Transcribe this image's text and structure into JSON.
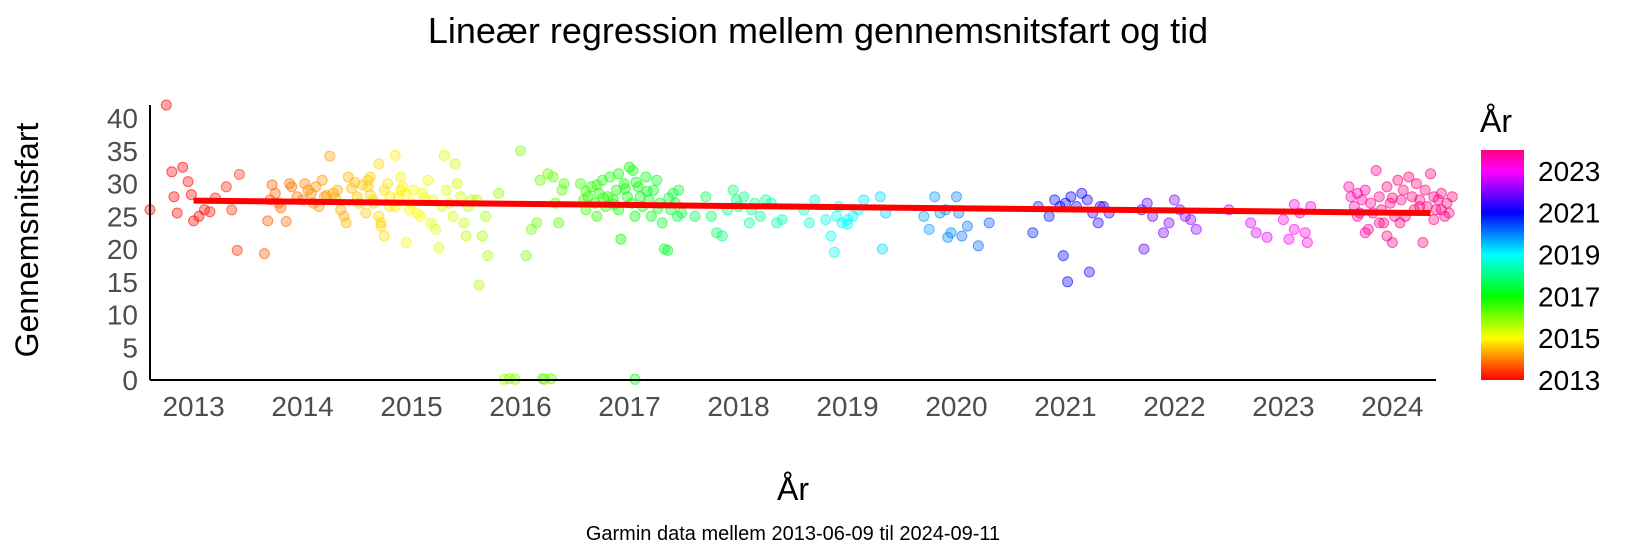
{
  "chart_data": {
    "type": "scatter",
    "title": "Lineær regression mellem gennemsnitsfart og tid",
    "xlabel": "År",
    "ylabel": "Gennemsnitsfart",
    "caption": "Garmin data mellem 2013-06-09 til 2024-09-11",
    "xlim": [
      2012.6,
      2024.4
    ],
    "ylim": [
      0,
      42
    ],
    "x_ticks": [
      "2013",
      "2014",
      "2015",
      "2016",
      "2017",
      "2018",
      "2019",
      "2020",
      "2021",
      "2022",
      "2023",
      "2024"
    ],
    "y_ticks": [
      "0",
      "5",
      "10",
      "15",
      "20",
      "25",
      "30",
      "35",
      "40"
    ],
    "grid": false,
    "legend": {
      "title": "År",
      "placement": "right",
      "type": "colorbar",
      "ticks": [
        "2013",
        "2015",
        "2017",
        "2019",
        "2021",
        "2023"
      ],
      "range": [
        2013,
        2024
      ],
      "gradient": [
        "#ff0000",
        "#ff8000",
        "#ffff00",
        "#80ff00",
        "#00ff00",
        "#00ff80",
        "#00ffff",
        "#0080ff",
        "#0000ff",
        "#8000ff",
        "#ff00ff",
        "#ff0080"
      ]
    },
    "point_opacity": 0.35,
    "regression_line": {
      "color": "#ff0000",
      "x": [
        2013.0,
        2024.35
      ],
      "y": [
        27.4,
        25.5
      ]
    },
    "points": [
      [
        2012.6,
        26.0
      ],
      [
        2012.75,
        42.0
      ],
      [
        2012.8,
        31.8
      ],
      [
        2012.82,
        28.0
      ],
      [
        2012.85,
        25.5
      ],
      [
        2012.9,
        32.5
      ],
      [
        2012.95,
        30.3
      ],
      [
        2012.98,
        28.3
      ],
      [
        2013.0,
        24.3
      ],
      [
        2013.05,
        25.0
      ],
      [
        2013.1,
        26.0
      ],
      [
        2013.15,
        25.7
      ],
      [
        2013.2,
        27.8
      ],
      [
        2013.3,
        29.5
      ],
      [
        2013.35,
        26.0
      ],
      [
        2013.4,
        19.8
      ],
      [
        2013.42,
        31.4
      ],
      [
        2013.65,
        19.3
      ],
      [
        2013.68,
        24.3
      ],
      [
        2013.7,
        27.5
      ],
      [
        2013.72,
        29.8
      ],
      [
        2013.75,
        28.5
      ],
      [
        2013.78,
        27.0
      ],
      [
        2013.8,
        26.3
      ],
      [
        2013.85,
        24.2
      ],
      [
        2013.9,
        29.5
      ],
      [
        2013.95,
        28.0
      ],
      [
        2014.0,
        27.5
      ],
      [
        2014.02,
        30.0
      ],
      [
        2014.05,
        29.0
      ],
      [
        2014.08,
        28.5
      ],
      [
        2014.1,
        27.0
      ],
      [
        2014.15,
        26.5
      ],
      [
        2014.18,
        30.5
      ],
      [
        2014.2,
        28.0
      ],
      [
        2014.25,
        34.2
      ],
      [
        2014.28,
        28.5
      ],
      [
        2014.3,
        27.8
      ],
      [
        2014.32,
        29.0
      ],
      [
        2014.35,
        26.0
      ],
      [
        2014.38,
        25.0
      ],
      [
        2014.4,
        24.0
      ],
      [
        2014.42,
        31.0
      ],
      [
        2014.45,
        29.3
      ],
      [
        2014.5,
        28.0
      ],
      [
        2014.52,
        27.0
      ],
      [
        2014.55,
        29.8
      ],
      [
        2014.6,
        30.5
      ],
      [
        2014.62,
        28.3
      ],
      [
        2014.65,
        27.5
      ],
      [
        2014.7,
        33.0
      ],
      [
        2014.72,
        24.0
      ],
      [
        2014.75,
        29.0
      ],
      [
        2014.78,
        30.0
      ],
      [
        2014.8,
        26.5
      ],
      [
        2014.85,
        34.3
      ],
      [
        2014.88,
        28.0
      ],
      [
        2014.9,
        31.0
      ],
      [
        2014.92,
        29.5
      ],
      [
        2014.95,
        28.5
      ],
      [
        2013.88,
        30.0
      ],
      [
        2014.12,
        29.5
      ],
      [
        2014.22,
        28.2
      ],
      [
        2014.48,
        30.2
      ],
      [
        2014.58,
        25.5
      ],
      [
        2014.6,
        29.5
      ],
      [
        2014.62,
        31.0
      ],
      [
        2014.65,
        27.0
      ],
      [
        2014.7,
        25.0
      ],
      [
        2014.72,
        23.5
      ],
      [
        2014.75,
        22.0
      ],
      [
        2014.8,
        28.0
      ],
      [
        2014.85,
        26.5
      ],
      [
        2014.9,
        29.0
      ],
      [
        2014.95,
        21.0
      ],
      [
        2015.0,
        27.0
      ],
      [
        2015.05,
        25.5
      ],
      [
        2015.1,
        28.5
      ],
      [
        2015.15,
        30.5
      ],
      [
        2015.18,
        24.0
      ],
      [
        2015.2,
        27.5
      ],
      [
        2015.22,
        23.0
      ],
      [
        2015.25,
        20.2
      ],
      [
        2015.28,
        26.5
      ],
      [
        2015.3,
        34.3
      ],
      [
        2015.32,
        29.0
      ],
      [
        2015.35,
        27.0
      ],
      [
        2015.38,
        25.0
      ],
      [
        2015.4,
        33.0
      ],
      [
        2015.42,
        30.0
      ],
      [
        2015.45,
        28.0
      ],
      [
        2015.48,
        24.0
      ],
      [
        2015.5,
        22.0
      ],
      [
        2015.52,
        26.5
      ],
      [
        2015.55,
        27.5
      ],
      [
        2014.98,
        26.0
      ],
      [
        2015.08,
        25.0
      ],
      [
        2015.12,
        27.8
      ],
      [
        2015.02,
        29.0
      ],
      [
        2015.6,
        27.5
      ],
      [
        2015.62,
        14.5
      ],
      [
        2015.65,
        22.0
      ],
      [
        2015.68,
        25.0
      ],
      [
        2015.7,
        19.0
      ],
      [
        2015.8,
        28.5
      ],
      [
        2015.85,
        0.1
      ],
      [
        2015.9,
        0.2
      ],
      [
        2015.95,
        0.1
      ],
      [
        2016.0,
        35.0
      ],
      [
        2016.05,
        19.0
      ],
      [
        2016.1,
        23.0
      ],
      [
        2016.15,
        24.0
      ],
      [
        2016.18,
        30.5
      ],
      [
        2016.2,
        0.2
      ],
      [
        2016.22,
        0.1
      ],
      [
        2016.25,
        31.5
      ],
      [
        2016.28,
        0.2
      ],
      [
        2016.3,
        31.0
      ],
      [
        2016.32,
        27.0
      ],
      [
        2016.35,
        24.0
      ],
      [
        2016.38,
        29.0
      ],
      [
        2016.4,
        30.0
      ],
      [
        2017.05,
        0.1
      ],
      [
        2016.55,
        30.0
      ],
      [
        2016.58,
        27.5
      ],
      [
        2016.6,
        26.0
      ],
      [
        2016.62,
        28.0
      ],
      [
        2016.65,
        29.5
      ],
      [
        2016.68,
        27.0
      ],
      [
        2016.7,
        25.0
      ],
      [
        2016.72,
        28.5
      ],
      [
        2016.75,
        30.5
      ],
      [
        2016.78,
        26.5
      ],
      [
        2016.8,
        28.0
      ],
      [
        2016.82,
        31.0
      ],
      [
        2016.85,
        27.5
      ],
      [
        2016.88,
        29.0
      ],
      [
        2016.9,
        26.0
      ],
      [
        2016.92,
        21.5
      ],
      [
        2016.95,
        30.0
      ],
      [
        2016.98,
        28.0
      ],
      [
        2017.0,
        32.5
      ],
      [
        2017.02,
        27.0
      ],
      [
        2017.05,
        25.0
      ],
      [
        2017.08,
        29.5
      ],
      [
        2017.1,
        28.0
      ],
      [
        2017.12,
        26.5
      ],
      [
        2017.15,
        31.0
      ],
      [
        2017.18,
        27.5
      ],
      [
        2017.2,
        25.0
      ],
      [
        2017.22,
        29.0
      ],
      [
        2017.25,
        30.5
      ],
      [
        2017.28,
        27.0
      ],
      [
        2017.3,
        24.0
      ],
      [
        2017.32,
        20.0
      ],
      [
        2017.35,
        19.8
      ],
      [
        2017.38,
        26.0
      ],
      [
        2017.4,
        28.5
      ],
      [
        2017.42,
        27.0
      ],
      [
        2017.45,
        29.0
      ],
      [
        2017.48,
        25.5
      ],
      [
        2016.6,
        28.8
      ],
      [
        2016.7,
        29.8
      ],
      [
        2016.76,
        27.8
      ],
      [
        2016.86,
        26.8
      ],
      [
        2016.96,
        29.2
      ],
      [
        2017.06,
        30.2
      ],
      [
        2017.16,
        28.8
      ],
      [
        2017.26,
        26.2
      ],
      [
        2017.36,
        27.8
      ],
      [
        2017.44,
        25.0
      ],
      [
        2017.03,
        32.0
      ],
      [
        2016.9,
        31.5
      ],
      [
        2017.6,
        25.0
      ],
      [
        2017.7,
        28.0
      ],
      [
        2017.75,
        25.0
      ],
      [
        2017.8,
        22.5
      ],
      [
        2017.85,
        22.0
      ],
      [
        2017.9,
        26.0
      ],
      [
        2017.95,
        29.0
      ],
      [
        2018.0,
        26.5
      ],
      [
        2018.05,
        28.0
      ],
      [
        2018.1,
        24.0
      ],
      [
        2018.15,
        27.0
      ],
      [
        2018.2,
        25.0
      ],
      [
        2018.25,
        27.5
      ],
      [
        2018.3,
        27.0
      ],
      [
        2018.35,
        24.0
      ],
      [
        2018.4,
        24.5
      ],
      [
        2017.98,
        27.5
      ],
      [
        2018.12,
        26.0
      ],
      [
        2018.6,
        26.0
      ],
      [
        2018.65,
        24.0
      ],
      [
        2018.7,
        27.5
      ],
      [
        2018.8,
        24.5
      ],
      [
        2018.85,
        22.0
      ],
      [
        2018.88,
        19.5
      ],
      [
        2018.9,
        25.0
      ],
      [
        2018.92,
        26.5
      ],
      [
        2018.95,
        24.0
      ],
      [
        2019.0,
        24.5
      ],
      [
        2019.05,
        25.0
      ],
      [
        2019.1,
        26.0
      ],
      [
        2019.15,
        27.5
      ],
      [
        2019.3,
        28.0
      ],
      [
        2019.32,
        20.0
      ],
      [
        2019.35,
        25.5
      ],
      [
        2019.0,
        23.8
      ],
      [
        2019.7,
        25.0
      ],
      [
        2019.75,
        23.0
      ],
      [
        2019.8,
        28.0
      ],
      [
        2019.85,
        25.5
      ],
      [
        2019.9,
        26.0
      ],
      [
        2019.92,
        21.8
      ],
      [
        2019.95,
        22.5
      ],
      [
        2020.0,
        28.0
      ],
      [
        2020.02,
        25.5
      ],
      [
        2020.05,
        22.0
      ],
      [
        2020.1,
        23.5
      ],
      [
        2020.2,
        20.5
      ],
      [
        2020.3,
        24.0
      ],
      [
        2020.7,
        22.5
      ],
      [
        2020.75,
        26.5
      ],
      [
        2020.85,
        25.0
      ],
      [
        2020.9,
        27.5
      ],
      [
        2020.95,
        26.5
      ],
      [
        2020.98,
        19.0
      ],
      [
        2021.0,
        27.0
      ],
      [
        2021.02,
        15.0
      ],
      [
        2021.05,
        28.0
      ],
      [
        2021.1,
        26.5
      ],
      [
        2021.2,
        27.5
      ],
      [
        2021.22,
        16.5
      ],
      [
        2021.25,
        25.5
      ],
      [
        2021.3,
        24.0
      ],
      [
        2021.35,
        26.5
      ],
      [
        2021.4,
        25.5
      ],
      [
        2021.15,
        28.5
      ],
      [
        2021.32,
        26.5
      ],
      [
        2021.7,
        26.0
      ],
      [
        2021.72,
        20.0
      ],
      [
        2021.75,
        27.0
      ],
      [
        2021.8,
        25.0
      ],
      [
        2021.9,
        22.5
      ],
      [
        2021.95,
        24.0
      ],
      [
        2022.0,
        27.5
      ],
      [
        2022.05,
        26.0
      ],
      [
        2022.1,
        25.0
      ],
      [
        2022.15,
        24.5
      ],
      [
        2022.2,
        23.0
      ],
      [
        2022.5,
        26.0
      ],
      [
        2022.7,
        24.0
      ],
      [
        2022.75,
        22.5
      ],
      [
        2022.85,
        21.8
      ],
      [
        2023.0,
        24.5
      ],
      [
        2023.05,
        21.5
      ],
      [
        2023.1,
        23.0
      ],
      [
        2023.15,
        25.5
      ],
      [
        2023.2,
        22.5
      ],
      [
        2023.22,
        21.0
      ],
      [
        2023.25,
        26.5
      ],
      [
        2023.1,
        26.8
      ],
      [
        2023.6,
        29.5
      ],
      [
        2023.62,
        28.0
      ],
      [
        2023.65,
        26.5
      ],
      [
        2023.68,
        28.5
      ],
      [
        2023.7,
        25.5
      ],
      [
        2023.72,
        27.5
      ],
      [
        2023.75,
        29.0
      ],
      [
        2023.78,
        23.0
      ],
      [
        2023.8,
        27.0
      ],
      [
        2023.82,
        25.5
      ],
      [
        2023.85,
        32.0
      ],
      [
        2023.88,
        28.0
      ],
      [
        2023.9,
        26.0
      ],
      [
        2023.92,
        24.0
      ],
      [
        2023.95,
        29.5
      ],
      [
        2023.98,
        27.0
      ],
      [
        2024.0,
        21.0
      ],
      [
        2024.02,
        25.0
      ],
      [
        2024.05,
        30.5
      ],
      [
        2024.08,
        27.5
      ],
      [
        2024.1,
        29.0
      ],
      [
        2024.12,
        25.0
      ],
      [
        2024.15,
        31.0
      ],
      [
        2024.18,
        28.0
      ],
      [
        2024.2,
        26.0
      ],
      [
        2024.22,
        30.0
      ],
      [
        2024.25,
        27.5
      ],
      [
        2024.28,
        21.0
      ],
      [
        2024.3,
        29.0
      ],
      [
        2024.32,
        26.5
      ],
      [
        2024.35,
        31.5
      ],
      [
        2024.38,
        28.0
      ],
      [
        2024.4,
        26.0
      ],
      [
        2024.42,
        27.5
      ],
      [
        2024.45,
        26.0
      ],
      [
        2024.48,
        25.0
      ],
      [
        2024.5,
        27.0
      ],
      [
        2024.52,
        25.5
      ],
      [
        2024.55,
        28.0
      ],
      [
        2023.75,
        22.5
      ],
      [
        2023.88,
        24.0
      ],
      [
        2024.0,
        27.8
      ],
      [
        2024.07,
        24.0
      ],
      [
        2024.25,
        26.5
      ],
      [
        2024.38,
        24.5
      ],
      [
        2024.45,
        28.5
      ],
      [
        2023.68,
        25.0
      ],
      [
        2023.95,
        22.0
      ]
    ]
  }
}
